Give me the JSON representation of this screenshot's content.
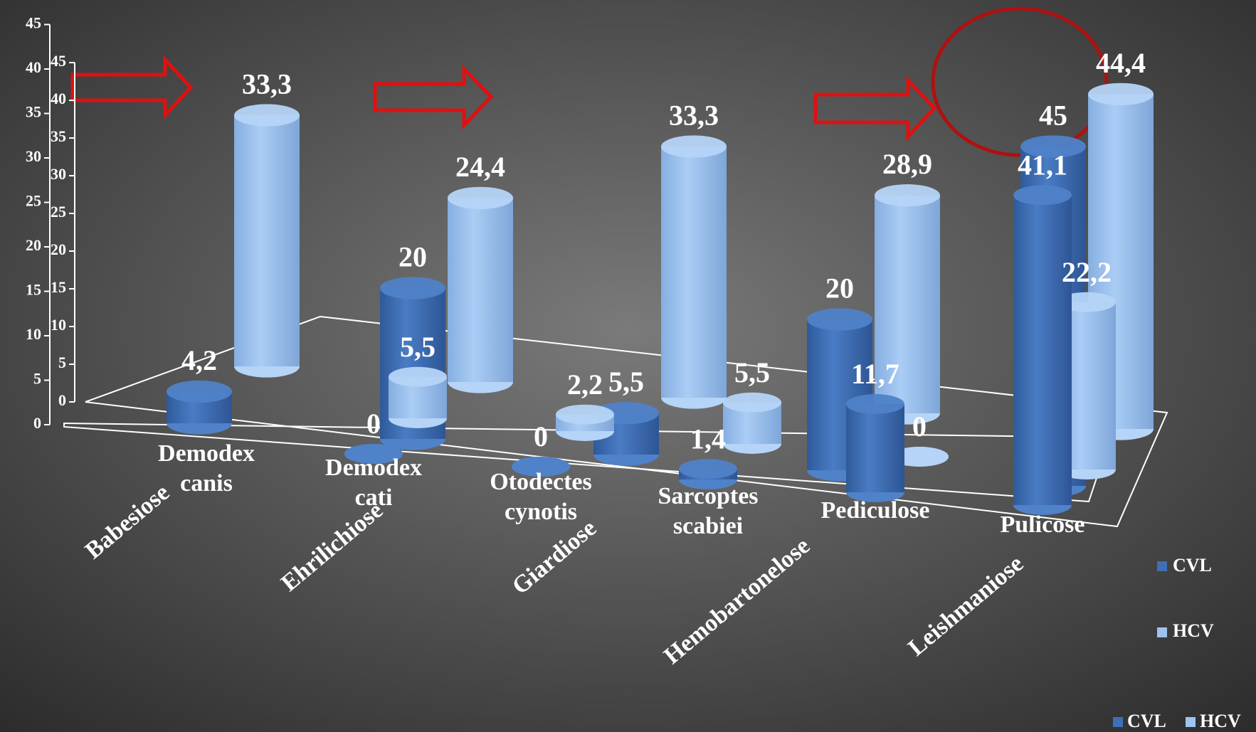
{
  "chart_data": [
    {
      "type": "bar3d",
      "categories": [
        "Babesiose",
        "Ehrilichiose",
        "Giardiose",
        "Hemobartonelose",
        "Leishmaniose"
      ],
      "series": [
        {
          "name": "CVL",
          "color": "#3f6fb5",
          "values": [
            4.2,
            20,
            5.5,
            20,
            45
          ],
          "value_labels": [
            "4,2",
            "20",
            "5,5",
            "20",
            "45"
          ]
        },
        {
          "name": "HCV",
          "color": "#9dc3f0",
          "values": [
            33.3,
            24.4,
            33.3,
            28.9,
            44.4
          ],
          "value_labels": [
            "33,3",
            "24,4",
            "33,3",
            "28,9",
            "44,4"
          ]
        }
      ],
      "ylim": [
        0,
        45
      ],
      "yticks": [
        0,
        5,
        10,
        15,
        20,
        25,
        30,
        35,
        40,
        45
      ]
    },
    {
      "type": "bar3d",
      "categories": [
        "Demodex canis",
        "Demodex cati",
        "Otodectes cynotis",
        "Sarcoptes scabiei",
        "Pediculose",
        "Pulicose"
      ],
      "series": [
        {
          "name": "CVL",
          "color": "#3f6fb5",
          "values": [
            null,
            0,
            0,
            1.4,
            11.7,
            41.1
          ],
          "value_labels": [
            null,
            "0",
            "0",
            "1,4",
            "11,7",
            "41,1"
          ]
        },
        {
          "name": "HCV",
          "color": "#9dc3f0",
          "values": [
            null,
            5.5,
            2.2,
            5.5,
            0,
            22.2
          ],
          "value_labels": [
            null,
            "5,5",
            "2,2",
            "5,5",
            "0",
            "22,2"
          ]
        }
      ],
      "ylim": [
        0,
        45
      ],
      "yticks": [
        0,
        5,
        10,
        15,
        20,
        25,
        30,
        35,
        40,
        45
      ]
    }
  ]
}
